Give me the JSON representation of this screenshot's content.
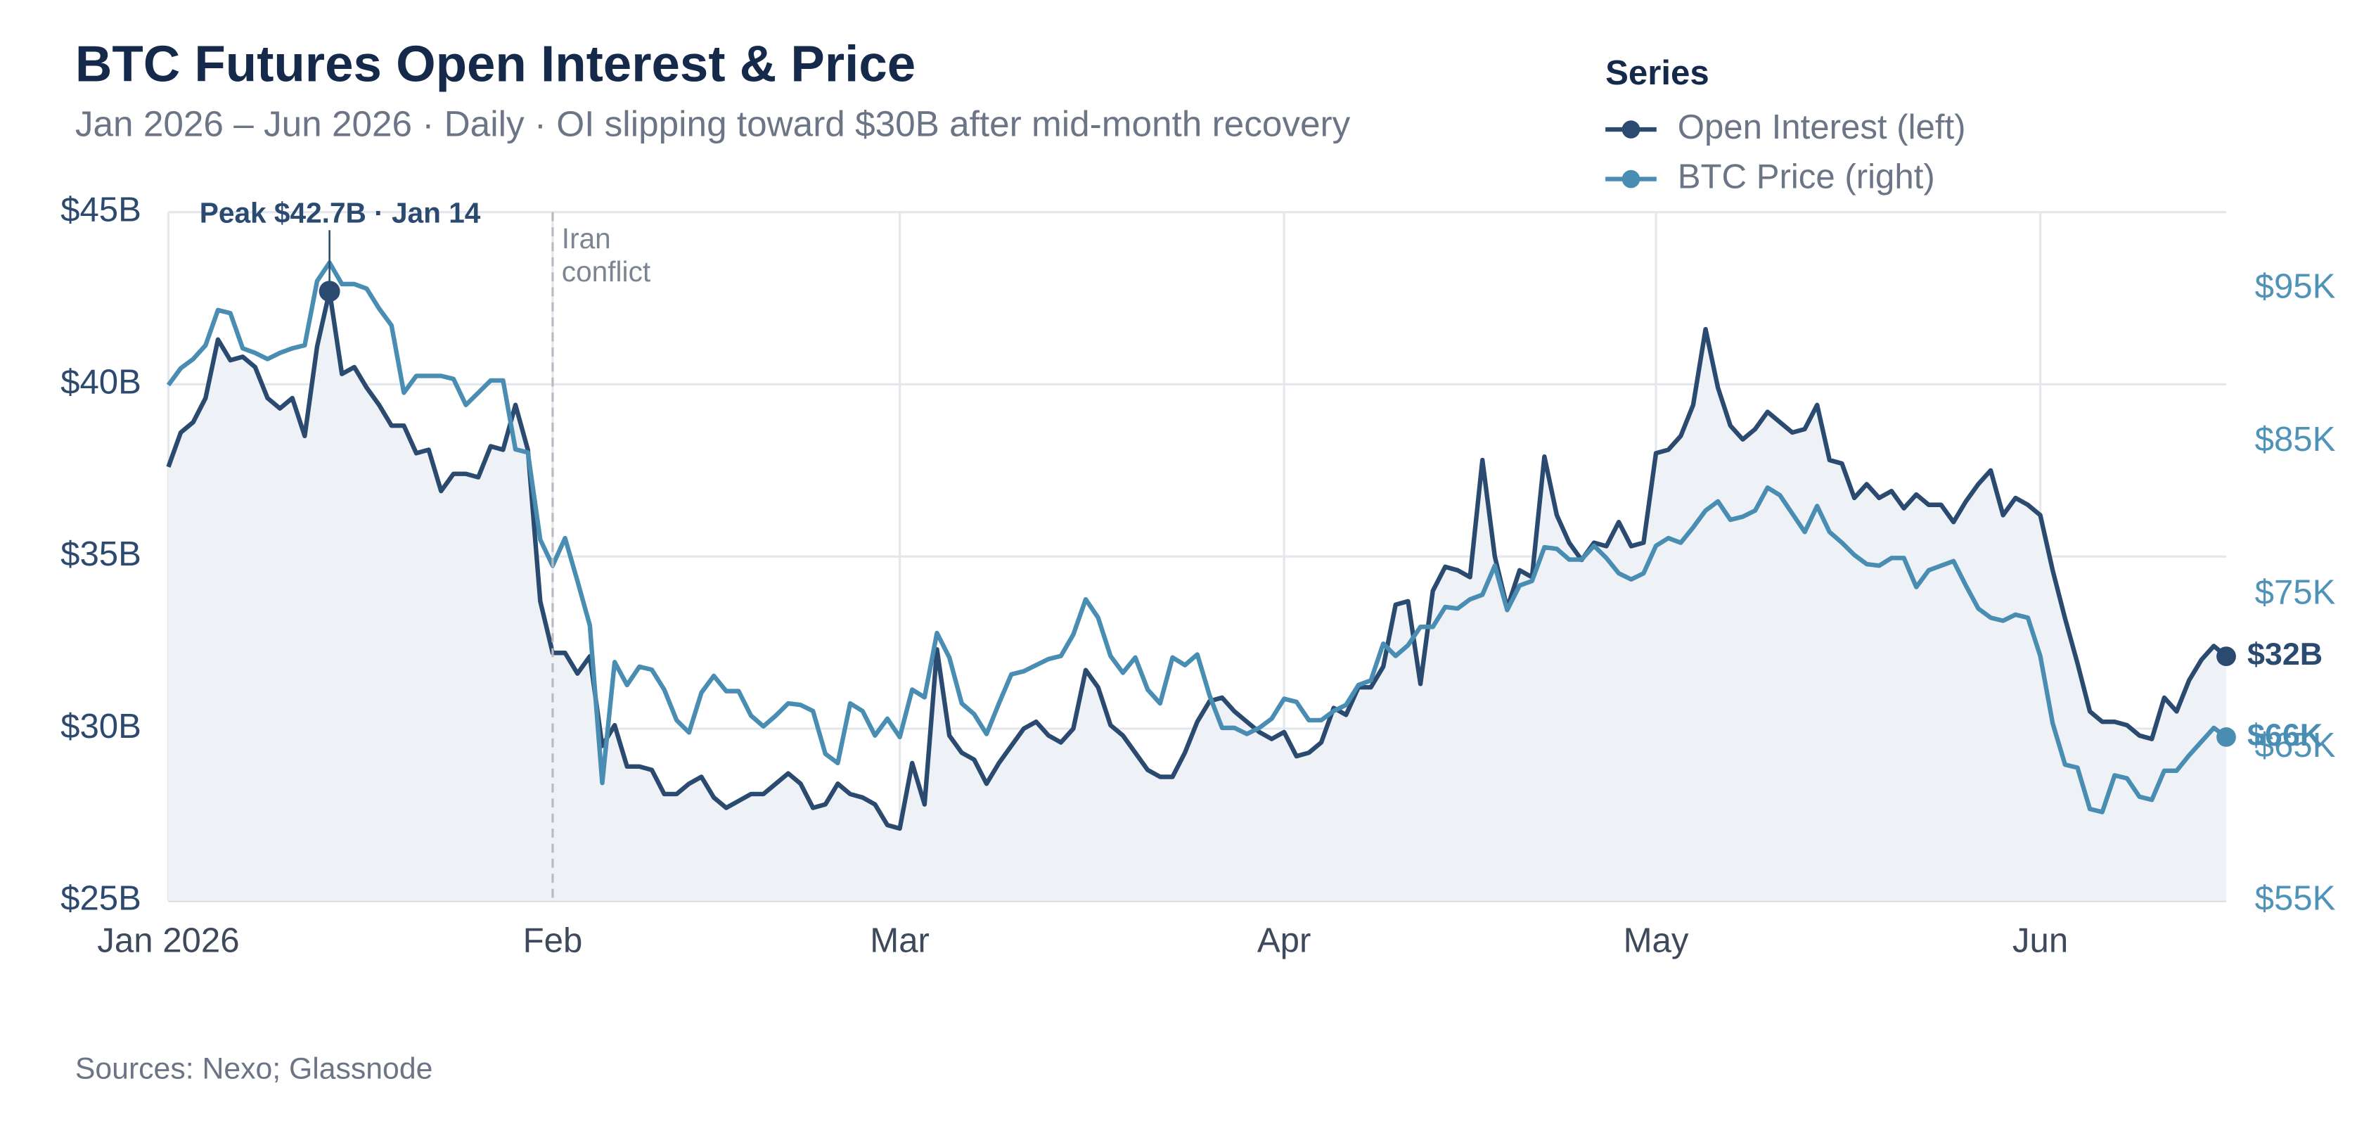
{
  "chart_data": {
    "type": "line",
    "title": "BTC Futures Open Interest & Price",
    "subtitle": "Jan 2026 – Jun 2026 · Daily · OI slipping toward $30B after mid-month recovery",
    "source": "Sources: Nexo; Glassnode",
    "legend_title": "Series",
    "legend": "top-right",
    "grid": true,
    "x": [
      0,
      1,
      2,
      3,
      4,
      5,
      6,
      7,
      8,
      9,
      10,
      11,
      12,
      13,
      14,
      15,
      16,
      17,
      18,
      19,
      20,
      21,
      22,
      23,
      24,
      25,
      26,
      27,
      28,
      29,
      30,
      31,
      32,
      33,
      34,
      35,
      36,
      37,
      38,
      39,
      40,
      41,
      42,
      43,
      44,
      45,
      46,
      47,
      48,
      49,
      50,
      51,
      52,
      53,
      54,
      55,
      56,
      57,
      58,
      59,
      60,
      61,
      62,
      63,
      64,
      65,
      66,
      67,
      68,
      69,
      70,
      71,
      72,
      73,
      74,
      75,
      76,
      77,
      78,
      79,
      80,
      81,
      82,
      83,
      84,
      85,
      86,
      87,
      88,
      89,
      90,
      91,
      92,
      93,
      94,
      95,
      96,
      97,
      98,
      99,
      100,
      101,
      102,
      103,
      104,
      105,
      106,
      107,
      108,
      109,
      110,
      111,
      112,
      113,
      114,
      115,
      116,
      117,
      118,
      119,
      120,
      121,
      122,
      123,
      124,
      125,
      126,
      127,
      128,
      129,
      130,
      131,
      132,
      133,
      134,
      135,
      136,
      137,
      138,
      139,
      140,
      141,
      142,
      143,
      144,
      145,
      146,
      147,
      148,
      149,
      150,
      151,
      152,
      153,
      154,
      155,
      156,
      157,
      158,
      159,
      160,
      161,
      162,
      163,
      164,
      165,
      166
    ],
    "xlim": [
      0,
      166
    ],
    "xticks": [
      {
        "value": 0,
        "label": "Jan 2026"
      },
      {
        "value": 31,
        "label": "Feb"
      },
      {
        "value": 59,
        "label": "Mar"
      },
      {
        "value": 90,
        "label": "Apr"
      },
      {
        "value": 120,
        "label": "May"
      },
      {
        "value": 151,
        "label": "Jun"
      }
    ],
    "ylim": [
      25,
      45
    ],
    "yticks": [
      {
        "value": 25,
        "label": "$25B"
      },
      {
        "value": 30,
        "label": "$30B"
      },
      {
        "value": 35,
        "label": "$35B"
      },
      {
        "value": 40,
        "label": "$40B"
      },
      {
        "value": 45,
        "label": "$45B"
      }
    ],
    "y2lim": [
      55,
      100
    ],
    "y2ticks": [
      {
        "value": 55,
        "label": "$55K"
      },
      {
        "value": 65,
        "label": "$65K"
      },
      {
        "value": 75,
        "label": "$75K"
      },
      {
        "value": 85,
        "label": "$85K"
      },
      {
        "value": 95,
        "label": "$95K"
      }
    ],
    "series": [
      {
        "name": "Open Interest (left)",
        "color": "#2b4a70",
        "axis": "y",
        "end_label": "$32B",
        "values": [
          37.6,
          38.6,
          38.9,
          39.6,
          41.3,
          40.7,
          40.8,
          40.5,
          39.6,
          39.3,
          39.6,
          38.5,
          41.1,
          42.7,
          40.3,
          40.5,
          39.9,
          39.4,
          38.8,
          38.8,
          38.0,
          38.1,
          36.9,
          37.4,
          37.4,
          37.3,
          38.2,
          38.1,
          39.4,
          38.1,
          33.7,
          32.2,
          32.2,
          31.6,
          32.1,
          29.5,
          30.1,
          28.9,
          28.9,
          28.8,
          28.1,
          28.1,
          28.4,
          28.6,
          28.0,
          27.7,
          27.9,
          28.1,
          28.1,
          28.4,
          28.7,
          28.4,
          27.7,
          27.8,
          28.4,
          28.1,
          28.0,
          27.8,
          27.2,
          27.1,
          29.0,
          27.8,
          32.3,
          29.8,
          29.3,
          29.1,
          28.4,
          29.0,
          29.5,
          30.0,
          30.2,
          29.8,
          29.6,
          30.0,
          31.7,
          31.2,
          30.1,
          29.8,
          29.3,
          28.8,
          28.6,
          28.6,
          29.3,
          30.2,
          30.8,
          30.9,
          30.5,
          30.2,
          29.9,
          29.7,
          29.9,
          29.2,
          29.3,
          29.6,
          30.6,
          30.4,
          31.2,
          31.2,
          31.8,
          33.6,
          33.7,
          31.3,
          34.0,
          34.7,
          34.6,
          34.4,
          37.8,
          35.0,
          33.5,
          34.6,
          34.4,
          37.9,
          36.2,
          35.4,
          34.9,
          35.4,
          35.3,
          36.0,
          35.3,
          35.4,
          38.0,
          38.1,
          38.5,
          39.4,
          41.6,
          39.9,
          38.8,
          38.4,
          38.7,
          39.2,
          38.9,
          38.6,
          38.7,
          39.4,
          37.8,
          37.7,
          36.7,
          37.1,
          36.7,
          36.9,
          36.4,
          36.8,
          36.5,
          36.5,
          36.0,
          36.6,
          37.1,
          37.5,
          36.2,
          36.7,
          36.5,
          36.2,
          34.6,
          33.2,
          31.9,
          30.5,
          30.2,
          30.2,
          30.1,
          29.8,
          29.7,
          30.9,
          30.5,
          31.4,
          32.0,
          32.4,
          32.1
        ]
      },
      {
        "name": "BTC Price (right)",
        "color": "#4a8db3",
        "axis": "y2",
        "end_label": "$66K",
        "values": [
          88.7,
          89.8,
          90.4,
          91.3,
          93.6,
          93.4,
          91.1,
          90.8,
          90.4,
          90.8,
          91.1,
          91.3,
          95.5,
          96.7,
          95.3,
          95.3,
          95.0,
          93.7,
          92.6,
          88.2,
          89.3,
          89.3,
          89.3,
          89.1,
          87.4,
          88.2,
          89.0,
          89.0,
          84.5,
          84.3,
          78.6,
          76.9,
          78.7,
          75.9,
          73.0,
          62.7,
          70.6,
          69.1,
          70.3,
          70.1,
          68.8,
          66.8,
          66.0,
          68.6,
          69.7,
          68.7,
          68.7,
          67.1,
          66.4,
          67.1,
          67.9,
          67.8,
          67.4,
          64.6,
          64.0,
          67.9,
          67.4,
          65.8,
          66.9,
          65.7,
          68.8,
          68.3,
          72.5,
          70.9,
          67.9,
          67.2,
          65.9,
          67.9,
          69.8,
          70.0,
          70.4,
          70.8,
          71.0,
          72.4,
          74.7,
          73.5,
          71.0,
          69.9,
          70.9,
          68.8,
          67.9,
          70.9,
          70.4,
          71.1,
          68.4,
          66.3,
          66.3,
          65.9,
          66.3,
          66.9,
          68.2,
          68.0,
          66.8,
          66.8,
          67.4,
          67.8,
          69.1,
          69.4,
          71.8,
          71.0,
          71.7,
          72.9,
          72.9,
          74.2,
          74.1,
          74.7,
          75.0,
          76.9,
          74.0,
          75.6,
          75.9,
          78.1,
          78.0,
          77.3,
          77.3,
          78.2,
          77.4,
          76.4,
          76.0,
          76.4,
          78.2,
          78.7,
          78.4,
          79.4,
          80.5,
          81.1,
          79.9,
          80.1,
          80.5,
          82.0,
          81.5,
          80.3,
          79.1,
          80.8,
          79.1,
          78.4,
          77.6,
          77.0,
          76.9,
          77.4,
          77.4,
          75.5,
          76.6,
          76.9,
          77.2,
          75.6,
          74.1,
          73.5,
          73.3,
          73.7,
          73.5,
          71.0,
          66.6,
          63.9,
          63.7,
          61.0,
          60.8,
          63.2,
          63.0,
          61.8,
          61.6,
          63.5,
          63.5,
          64.5,
          65.4,
          66.3,
          65.7
        ]
      }
    ],
    "annotations": [
      {
        "text": "Peak $42.7B · Jan 14",
        "x": 13
      },
      {
        "lines": [
          "Iran",
          "conflict"
        ],
        "x": 31
      }
    ]
  }
}
